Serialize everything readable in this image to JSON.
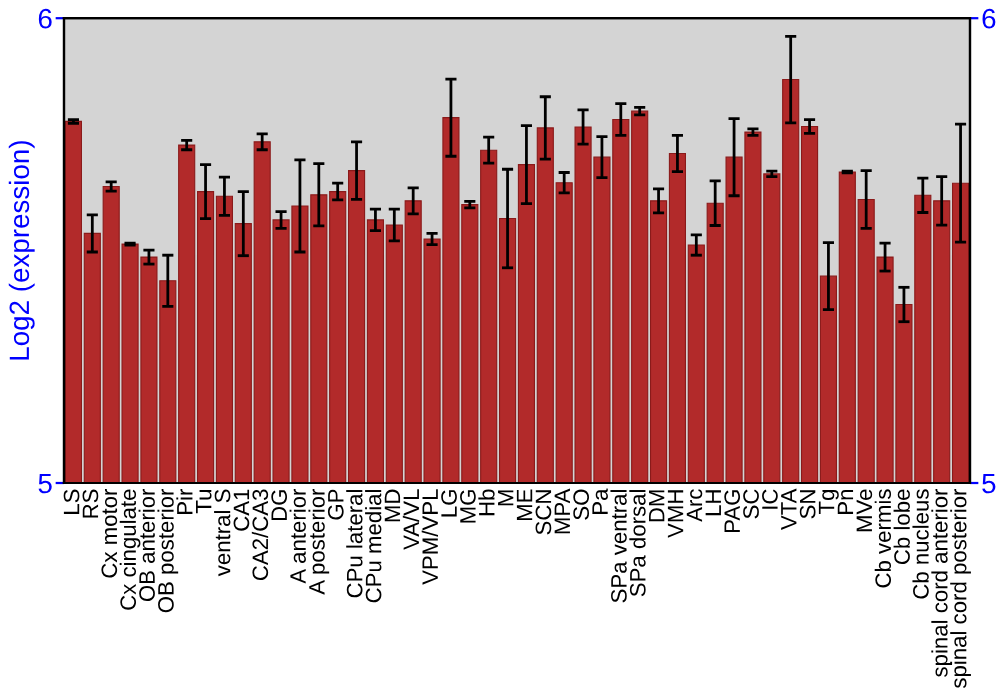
{
  "chart_data": {
    "type": "bar",
    "ylabel": "Log2 (expression)",
    "categories": [
      "LS",
      "RS",
      "Cx motor",
      "Cx cingulate",
      "OB anterior",
      "OB posterior",
      "Pir",
      "Tu",
      "ventral S",
      "CA1",
      "CA2/CA3",
      "DG",
      "A anterior",
      "A posterior",
      "GP",
      "CPu lateral",
      "CPu medial",
      "MD",
      "VA/VL",
      "VPM/VPL",
      "LG",
      "MG",
      "Hb",
      "M",
      "ME",
      "SCN",
      "MPA",
      "SO",
      "Pa",
      "SPa ventral",
      "SPa dorsal",
      "DM",
      "VMH",
      "Arc",
      "LH",
      "PAG",
      "SC",
      "IC",
      "VTA",
      "SN",
      "Tg",
      "Pn",
      "MVe",
      "Cb vermis",
      "Cb lobe",
      "Cb nucleus",
      "spinal cord anterior",
      "spinal cord posterior"
    ],
    "values": [
      5.778,
      5.537,
      5.638,
      5.514,
      5.486,
      5.435,
      5.727,
      5.627,
      5.617,
      5.558,
      5.734,
      5.566,
      5.596,
      5.62,
      5.627,
      5.672,
      5.566,
      5.555,
      5.607,
      5.525,
      5.786,
      5.599,
      5.716,
      5.569,
      5.685,
      5.764,
      5.646,
      5.766,
      5.701,
      5.782,
      5.8,
      5.607,
      5.709,
      5.512,
      5.602,
      5.701,
      5.755,
      5.665,
      5.868,
      5.767,
      5.445,
      5.669,
      5.61,
      5.486,
      5.384,
      5.619,
      5.607,
      5.645
    ],
    "errors": [
      0.004,
      0.04,
      0.01,
      0.002,
      0.015,
      0.055,
      0.01,
      0.058,
      0.041,
      0.069,
      0.017,
      0.018,
      0.099,
      0.067,
      0.018,
      0.062,
      0.023,
      0.034,
      0.028,
      0.012,
      0.083,
      0.007,
      0.028,
      0.106,
      0.084,
      0.067,
      0.022,
      0.037,
      0.044,
      0.034,
      0.008,
      0.026,
      0.039,
      0.022,
      0.048,
      0.083,
      0.007,
      0.006,
      0.093,
      0.015,
      0.072,
      0.002,
      0.062,
      0.03,
      0.037,
      0.037,
      0.052,
      0.127
    ],
    "color": "#b22a2a",
    "ylim": [
      5,
      6
    ],
    "yticks": [
      5,
      6
    ],
    "y2lim": [
      5,
      6
    ],
    "y2ticks": [
      5,
      6
    ],
    "grid": false
  }
}
